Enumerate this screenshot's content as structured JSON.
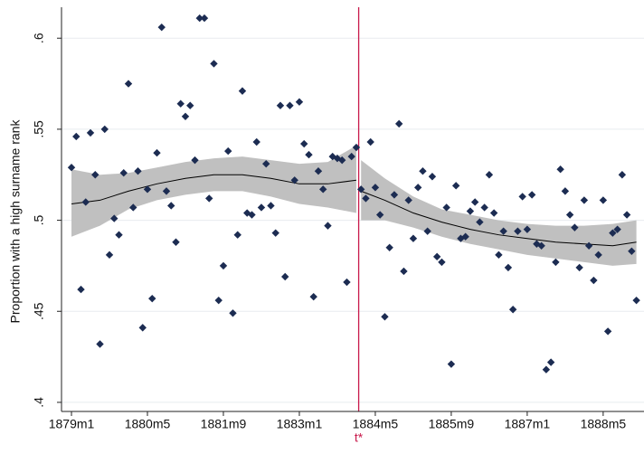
{
  "chart_data": {
    "type": "scatter",
    "y_label": "Proportion with a high surname rank",
    "color": "#1c2c52",
    "x": [
      0,
      1,
      2,
      3,
      4,
      5,
      6,
      7,
      8,
      9,
      10,
      11,
      12,
      13,
      14,
      15,
      16,
      17,
      18,
      19,
      20,
      21,
      22,
      23,
      24,
      25,
      26,
      27,
      28,
      29,
      30,
      31,
      32,
      33,
      34,
      35,
      36,
      37,
      38,
      39,
      40,
      41,
      42,
      43,
      44,
      45,
      46,
      47,
      48,
      49,
      50,
      51,
      52,
      53,
      54,
      55,
      56,
      57,
      58,
      59,
      60,
      61,
      62,
      63,
      64,
      65,
      66,
      67,
      68,
      69,
      70,
      71,
      72,
      73,
      74,
      75,
      76,
      77,
      78,
      79,
      80,
      81,
      82,
      83,
      84,
      85,
      86,
      87,
      88,
      89,
      90,
      91,
      92,
      93,
      94,
      95,
      96,
      97,
      98,
      99,
      100,
      101,
      102,
      103,
      104,
      105,
      106,
      107,
      108,
      109,
      110,
      111,
      112,
      113,
      114,
      115,
      116,
      117,
      118,
      119
    ],
    "values": [
      0.529,
      0.546,
      0.462,
      0.51,
      0.548,
      0.525,
      0.432,
      0.55,
      0.481,
      0.501,
      0.492,
      0.526,
      0.575,
      0.507,
      0.527,
      0.441,
      0.517,
      0.457,
      0.537,
      0.606,
      0.516,
      0.508,
      0.488,
      0.564,
      0.557,
      0.563,
      0.533,
      0.611,
      0.611,
      0.512,
      0.586,
      0.456,
      0.475,
      0.538,
      0.449,
      0.492,
      0.571,
      0.504,
      0.503,
      0.543,
      0.507,
      0.531,
      0.508,
      0.493,
      0.563,
      0.469,
      0.563,
      0.522,
      0.565,
      0.542,
      0.536,
      0.458,
      0.527,
      0.517,
      0.497,
      0.535,
      0.534,
      0.533,
      0.466,
      0.535,
      0.54,
      0.517,
      0.512,
      0.543,
      0.518,
      0.503,
      0.447,
      0.485,
      0.514,
      0.553,
      0.472,
      0.511,
      0.49,
      0.518,
      0.527,
      0.494,
      0.524,
      0.48,
      0.477,
      0.507,
      0.421,
      0.519,
      0.49,
      0.491,
      0.505,
      0.51,
      0.499,
      0.507,
      0.525,
      0.504,
      0.481,
      0.494,
      0.474,
      0.451,
      0.494,
      0.513,
      0.495,
      0.514,
      0.487,
      0.486,
      0.418,
      0.422,
      0.477,
      0.528,
      0.516,
      0.503,
      0.496,
      0.474,
      0.511,
      0.486,
      0.467,
      0.481,
      0.511,
      0.439,
      0.493,
      0.495,
      0.525,
      0.503,
      0.483,
      0.456
    ],
    "fits": [
      {
        "x": [
          0,
          6,
          12,
          18,
          24,
          30,
          36,
          42,
          48,
          54,
          60
        ],
        "values": [
          0.509,
          0.511,
          0.516,
          0.52,
          0.523,
          0.525,
          0.525,
          0.523,
          0.52,
          0.52,
          0.522
        ],
        "lower": [
          0.491,
          0.497,
          0.506,
          0.511,
          0.514,
          0.516,
          0.516,
          0.513,
          0.509,
          0.507,
          0.504
        ],
        "upper": [
          0.528,
          0.525,
          0.526,
          0.529,
          0.532,
          0.534,
          0.535,
          0.533,
          0.531,
          0.532,
          0.541
        ]
      },
      {
        "x": [
          61,
          66,
          72,
          78,
          84,
          90,
          96,
          102,
          108,
          114,
          119
        ],
        "values": [
          0.516,
          0.511,
          0.504,
          0.499,
          0.495,
          0.492,
          0.49,
          0.488,
          0.487,
          0.486,
          0.488
        ],
        "lower": [
          0.5,
          0.5,
          0.496,
          0.491,
          0.487,
          0.484,
          0.481,
          0.479,
          0.477,
          0.475,
          0.476
        ],
        "upper": [
          0.533,
          0.523,
          0.513,
          0.506,
          0.503,
          0.5,
          0.498,
          0.497,
          0.497,
          0.498,
          0.5
        ]
      }
    ],
    "fit_color": "#000000",
    "band_color": "#c0c0c0",
    "cutoff": {
      "value": 60.5,
      "label": "t*",
      "color": "#c8174a"
    },
    "xlim": [
      -2.1,
      120.6
    ],
    "ylim": [
      0.395,
      0.617
    ],
    "xticks": [
      {
        "value": 0,
        "label": "1879m1"
      },
      {
        "value": 16,
        "label": "1880m5"
      },
      {
        "value": 32,
        "label": "1881m9"
      },
      {
        "value": 48,
        "label": "1883m1"
      },
      {
        "value": 64,
        "label": "1884m5"
      },
      {
        "value": 80,
        "label": "1885m9"
      },
      {
        "value": 96,
        "label": "1887m1"
      },
      {
        "value": 112,
        "label": "1888m5"
      }
    ],
    "yticks": [
      {
        "value": 0.4,
        "label": ".4"
      },
      {
        "value": 0.45,
        "label": ".45"
      },
      {
        "value": 0.5,
        "label": ".5"
      },
      {
        "value": 0.55,
        "label": ".55"
      },
      {
        "value": 0.6,
        "label": ".6"
      }
    ],
    "grid": true
  }
}
